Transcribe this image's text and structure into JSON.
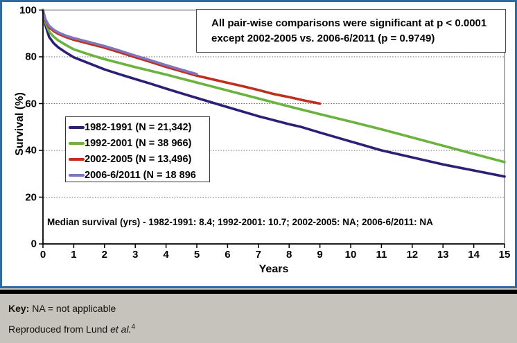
{
  "chart_data": {
    "type": "line",
    "title": "",
    "xlabel": "Years",
    "ylabel": "Survival (%)",
    "xlim": [
      0,
      15
    ],
    "ylim": [
      0,
      100
    ],
    "x_ticks": [
      0,
      1,
      2,
      3,
      4,
      5,
      6,
      7,
      8,
      9,
      10,
      11,
      12,
      13,
      14,
      15
    ],
    "y_ticks": [
      0,
      20,
      40,
      60,
      80,
      100
    ],
    "grid_horizontal_at": [
      20,
      40,
      60,
      80
    ],
    "grid_style": "dotted",
    "legend_position": "inside-left",
    "annotation": [
      "All pair-wise comparisons were significant at p < 0.0001",
      "except 2002-2005 vs. 2006-6/2011 (p = 0.9749)"
    ],
    "median_note": "Median survival (yrs) - 1982-1991: 8.4; 1992-2001: 10.7; 2002-2005: NA; 2006-6/2011: NA",
    "series": [
      {
        "name": "1982-1991 (N = 21,342)",
        "color": "#2b2078",
        "points": [
          [
            0,
            100
          ],
          [
            0.08,
            93.5
          ],
          [
            0.2,
            88.5
          ],
          [
            0.35,
            85.8
          ],
          [
            0.5,
            84
          ],
          [
            0.75,
            81.8
          ],
          [
            1,
            79.8
          ],
          [
            1.5,
            77.2
          ],
          [
            2,
            74.6
          ],
          [
            2.5,
            72.5
          ],
          [
            3,
            70.5
          ],
          [
            3.5,
            68.5
          ],
          [
            4,
            66.4
          ],
          [
            4.5,
            64.4
          ],
          [
            5,
            62.4
          ],
          [
            6,
            58.5
          ],
          [
            7,
            54.6
          ],
          [
            8,
            51.2
          ],
          [
            8.4,
            50
          ],
          [
            9,
            47.6
          ],
          [
            10,
            43.8
          ],
          [
            11,
            40
          ],
          [
            12,
            37
          ],
          [
            13,
            34
          ],
          [
            14,
            31.4
          ],
          [
            15,
            28.8
          ]
        ]
      },
      {
        "name": "1992-2001 (N = 38 966)",
        "color": "#6ab33e",
        "points": [
          [
            0,
            100
          ],
          [
            0.08,
            94.8
          ],
          [
            0.2,
            90.8
          ],
          [
            0.35,
            88.6
          ],
          [
            0.5,
            87
          ],
          [
            0.75,
            85
          ],
          [
            1,
            83.2
          ],
          [
            1.5,
            81
          ],
          [
            2,
            79
          ],
          [
            2.5,
            77.3
          ],
          [
            3,
            75.6
          ],
          [
            3.5,
            74
          ],
          [
            4,
            72.4
          ],
          [
            4.5,
            70.7
          ],
          [
            5,
            69
          ],
          [
            6,
            65.6
          ],
          [
            7,
            62.2
          ],
          [
            8,
            58.8
          ],
          [
            9,
            55.5
          ],
          [
            10,
            52.3
          ],
          [
            10.7,
            50
          ],
          [
            11,
            49
          ],
          [
            12,
            45.5
          ],
          [
            13,
            42
          ],
          [
            14,
            38.5
          ],
          [
            15,
            35
          ]
        ]
      },
      {
        "name": "2002-2005 (N = 13,496)",
        "color": "#c02f1d",
        "points": [
          [
            0,
            100
          ],
          [
            0.08,
            95.6
          ],
          [
            0.2,
            92.6
          ],
          [
            0.35,
            91
          ],
          [
            0.5,
            89.8
          ],
          [
            0.75,
            88.4
          ],
          [
            1,
            87.3
          ],
          [
            1.5,
            85.6
          ],
          [
            2,
            83.9
          ],
          [
            2.5,
            81.9
          ],
          [
            3,
            79.8
          ],
          [
            3.5,
            77.8
          ],
          [
            4,
            75.7
          ],
          [
            4.5,
            73.8
          ],
          [
            5,
            71.9
          ],
          [
            5.5,
            70.4
          ],
          [
            6,
            68.9
          ],
          [
            6.5,
            67.4
          ],
          [
            7,
            65.8
          ],
          [
            7.5,
            64.1
          ],
          [
            8,
            62.8
          ],
          [
            8.5,
            61.3
          ],
          [
            9,
            60
          ]
        ]
      },
      {
        "name": "2006-6/2011 (N = 18 896",
        "color": "#8274bc",
        "points": [
          [
            0,
            100
          ],
          [
            0.08,
            96
          ],
          [
            0.2,
            93.2
          ],
          [
            0.35,
            91.6
          ],
          [
            0.5,
            90.4
          ],
          [
            0.75,
            89
          ],
          [
            1,
            88
          ],
          [
            1.5,
            86.3
          ],
          [
            2,
            84.6
          ],
          [
            2.5,
            82.6
          ],
          [
            3,
            80.5
          ],
          [
            3.5,
            78.5
          ],
          [
            4,
            76.4
          ],
          [
            4.5,
            74.5
          ],
          [
            5,
            72.6
          ]
        ]
      }
    ]
  },
  "footer": {
    "key_label": "Key:",
    "key_text": " NA = not applicable",
    "source_prefix": "Reproduced from Lund ",
    "source_italic": "et al.",
    "source_superscript": "4"
  },
  "colors": {
    "frame_blue": "#2e6ba5",
    "footer_background": "#c6c3bd",
    "gridline": "#666666"
  }
}
